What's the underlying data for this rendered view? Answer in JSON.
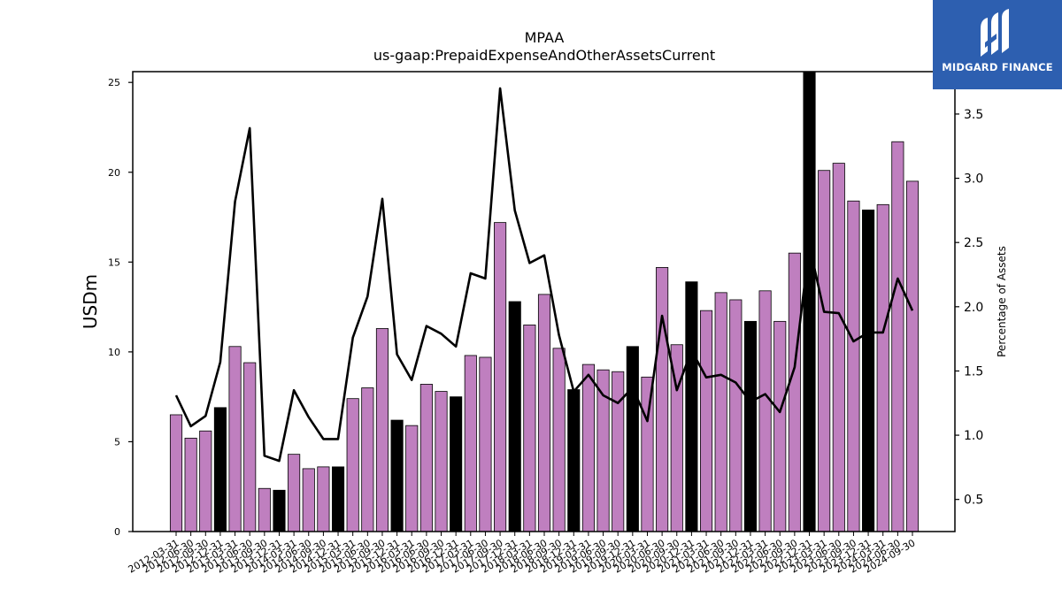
{
  "chart_data": {
    "type": "bar",
    "title": "MPAA",
    "subtitle": "us-gaap:PrepaidExpenseAndOtherAssetsCurrent",
    "ylabel": "USDm",
    "y2label": "Percentage of Assets",
    "ylim": [
      0,
      25.6
    ],
    "y2lim": [
      0.25,
      3.83
    ],
    "yticks": [
      0,
      5,
      10,
      15,
      20,
      25
    ],
    "y2ticks": [
      0.5,
      1.0,
      1.5,
      2.0,
      2.5,
      3.0,
      3.5
    ],
    "categories": [
      "2012-03-31",
      "2012-06-30",
      "2012-09-30",
      "2012-12-31",
      "2013-03-31",
      "2013-06-30",
      "2013-09-30",
      "2013-12-31",
      "2014-03-31",
      "2014-06-30",
      "2014-09-30",
      "2014-12-31",
      "2015-03-31",
      "2015-06-30",
      "2015-09-30",
      "2015-12-31",
      "2016-03-31",
      "2016-06-30",
      "2016-09-30",
      "2016-12-31",
      "2017-03-31",
      "2017-06-30",
      "2017-09-30",
      "2017-12-31",
      "2018-03-31",
      "2018-06-30",
      "2018-09-30",
      "2018-12-31",
      "2019-03-31",
      "2019-06-30",
      "2019-09-30",
      "2019-12-31",
      "2020-03-31",
      "2020-06-30",
      "2020-09-30",
      "2020-12-31",
      "2021-03-31",
      "2021-06-30",
      "2021-09-30",
      "2021-12-31",
      "2022-03-31",
      "2022-06-30",
      "2022-09-30",
      "2022-12-31",
      "2023-03-31",
      "2023-06-30",
      "2023-09-30",
      "2023-12-31",
      "2024-03-31",
      "2024-06-30",
      "2024-09-30"
    ],
    "series": [
      {
        "kind": "bar",
        "values": [
          6.5,
          5.2,
          5.6,
          6.9,
          10.3,
          9.4,
          2.4,
          2.3,
          4.3,
          3.5,
          3.6,
          3.6,
          7.4,
          8.0,
          11.3,
          6.2,
          5.9,
          8.2,
          7.8,
          7.5,
          9.8,
          9.7,
          17.2,
          12.8,
          11.5,
          13.2,
          10.2,
          7.9,
          9.3,
          9.0,
          8.9,
          10.3,
          8.6,
          14.7,
          10.4,
          13.9,
          12.3,
          13.3,
          12.9,
          11.7,
          13.4,
          11.7,
          15.5,
          25.6,
          20.1,
          20.5,
          18.4,
          17.9,
          18.2,
          21.7,
          19.5
        ],
        "highlight_indices": [
          3,
          7,
          11,
          15,
          19,
          23,
          27,
          31,
          35,
          39,
          43,
          47
        ],
        "color": "#bf7fbf",
        "highlight_color": "#000000"
      },
      {
        "kind": "line",
        "axis": "right",
        "values": [
          1.31,
          1.07,
          1.15,
          1.57,
          2.82,
          3.39,
          0.84,
          0.8,
          1.35,
          1.14,
          0.97,
          0.97,
          1.76,
          2.08,
          2.84,
          1.63,
          1.43,
          1.85,
          1.79,
          1.69,
          2.26,
          2.22,
          3.7,
          2.75,
          2.34,
          2.4,
          1.78,
          1.34,
          1.47,
          1.31,
          1.25,
          1.37,
          1.11,
          1.93,
          1.35,
          1.66,
          1.45,
          1.47,
          1.41,
          1.26,
          1.32,
          1.18,
          1.53,
          2.48,
          1.96,
          1.95,
          1.73,
          1.8,
          1.8,
          2.22,
          1.97
        ],
        "color": "#000000"
      }
    ]
  },
  "logo": {
    "brand": "MIDGARD FINANCE"
  }
}
